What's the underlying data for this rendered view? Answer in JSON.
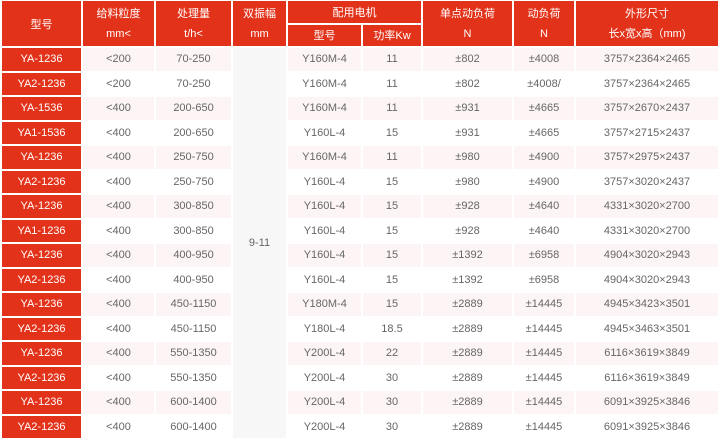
{
  "header": {
    "model": "型号",
    "feed_size": "给料粒度",
    "feed_size_unit": "mm<",
    "capacity": "处理量",
    "capacity_unit": "t/h<",
    "amplitude": "双振幅",
    "amplitude_unit": "mm",
    "motor": "配用电机",
    "motor_model": "型号",
    "motor_power": "功率Kw",
    "point_load": "单点动负荷",
    "point_load_unit": "N",
    "dynamic_load": "动负荷",
    "dynamic_load_unit": "N",
    "dimensions": "外形尺寸",
    "dimensions_unit": "长x宽x高（mm)"
  },
  "amplitude_value": "9-11",
  "rows": [
    [
      "YA-1236",
      "<200",
      "70-250",
      "Y160M-4",
      "11",
      "±802",
      "±4008",
      "3757×2364×2465"
    ],
    [
      "YA2-1236",
      "<200",
      "70-250",
      "Y160M-4",
      "11",
      "±802",
      "±4008/",
      "3757×2364×2465"
    ],
    [
      "YA-1536",
      "<400",
      "200-650",
      "Y160M-4",
      "11",
      "±931",
      "±4665",
      "3757×2670×2437"
    ],
    [
      "YA1-1536",
      "<400",
      "200-650",
      "Y160L-4",
      "15",
      "±931",
      "±4665",
      "3757×2715×2437"
    ],
    [
      "YA-1236",
      "<400",
      "250-750",
      "Y160M-4",
      "11",
      "±980",
      "±4900",
      "3757×2975×2437"
    ],
    [
      "YA2-1236",
      "<400",
      "250-750",
      "Y160L-4",
      "15",
      "±980",
      "±4900",
      "3757×3020×2437"
    ],
    [
      "YA-1236",
      "<400",
      "300-850",
      "Y160L-4",
      "15",
      "±928",
      "±4640",
      "4331×3020×2700"
    ],
    [
      "YA1-1236",
      "<400",
      "300-850",
      "Y160L-4",
      "15",
      "±928",
      "±4640",
      "4331×3020×2700"
    ],
    [
      "YA-1236",
      "<400",
      "400-950",
      "Y160L-4",
      "15",
      "±1392",
      "±6958",
      "4904×3020×2943"
    ],
    [
      "YA2-1236",
      "<400",
      "400-950",
      "Y160L-4",
      "15",
      "±1392",
      "±6958",
      "4904×3020×2943"
    ],
    [
      "YA-1236",
      "<400",
      "450-1150",
      "Y180M-4",
      "15",
      "±2889",
      "±14445",
      "4945×3423×3501"
    ],
    [
      "YA2-1236",
      "<400",
      "450-1150",
      "Y180L-4",
      "18.5",
      "±2889",
      "±14445",
      "4945×3463×3501"
    ],
    [
      "YA-1236",
      "<400",
      "550-1350",
      "Y200L-4",
      "22",
      "±2889",
      "±14445",
      "6116×3619×3849"
    ],
    [
      "YA2-1236",
      "<400",
      "550-1350",
      "Y200L-4",
      "30",
      "±2889",
      "±14445",
      "6116×3619×3849"
    ],
    [
      "YA-1236",
      "<400",
      "600-1400",
      "Y200L-4",
      "30",
      "±2889",
      "±14445",
      "6091×3925×3846"
    ],
    [
      "YA2-1236",
      "<400",
      "600-1400",
      "Y200L-4",
      "30",
      "±2889",
      "±14445",
      "6091×3925×3846"
    ]
  ],
  "colors": {
    "header_bg": "#e2321a",
    "row_alt_bg": "#fdf5f5"
  }
}
